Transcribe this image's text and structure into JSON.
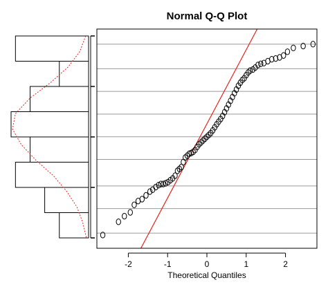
{
  "chart_data": [
    {
      "type": "scatter",
      "title": "Normal Q-Q Plot",
      "xlabel": "Theoretical Quantiles",
      "ylabel": "",
      "xlim": [
        -2.8,
        2.8
      ],
      "ylim": [
        -2.9,
        2.9
      ],
      "xticks": [
        "-2",
        "-1",
        "0",
        "1",
        "2"
      ],
      "xtick_values": [
        -2,
        -1,
        0,
        1,
        2
      ],
      "grid": "horizontal",
      "gridlines_y": [
        -2.5,
        -1.85,
        -1.25,
        -0.55,
        0.05,
        0.65,
        1.25,
        1.85,
        2.5
      ],
      "reference_line": {
        "color": "#e8231c",
        "points": [
          [
            -1.68,
            -2.9
          ],
          [
            1.28,
            2.9
          ]
        ]
      },
      "series": [
        {
          "points": [
            [
              -2.65,
              -2.55
            ],
            [
              -2.25,
              -2.2
            ],
            [
              -2.1,
              -2.05
            ],
            [
              -1.95,
              -1.95
            ],
            [
              -1.85,
              -1.75
            ],
            [
              -1.75,
              -1.65
            ],
            [
              -1.65,
              -1.6
            ],
            [
              -1.55,
              -1.5
            ],
            [
              -1.45,
              -1.4
            ],
            [
              -1.38,
              -1.35
            ],
            [
              -1.3,
              -1.28
            ],
            [
              -1.23,
              -1.23
            ],
            [
              -1.17,
              -1.2
            ],
            [
              -1.11,
              -1.2
            ],
            [
              -1.05,
              -1.18
            ],
            [
              -0.99,
              -1.15
            ],
            [
              -0.93,
              -1.1
            ],
            [
              -0.87,
              -1.05
            ],
            [
              -0.81,
              -0.98
            ],
            [
              -0.75,
              -0.85
            ],
            [
              -0.7,
              -0.8
            ],
            [
              -0.65,
              -0.75
            ],
            [
              -0.6,
              -0.62
            ],
            [
              -0.55,
              -0.5
            ],
            [
              -0.5,
              -0.45
            ],
            [
              -0.45,
              -0.4
            ],
            [
              -0.4,
              -0.38
            ],
            [
              -0.35,
              -0.35
            ],
            [
              -0.3,
              -0.3
            ],
            [
              -0.25,
              -0.22
            ],
            [
              -0.2,
              -0.15
            ],
            [
              -0.15,
              -0.1
            ],
            [
              -0.1,
              -0.05
            ],
            [
              -0.05,
              0.0
            ],
            [
              0.0,
              0.05
            ],
            [
              0.05,
              0.1
            ],
            [
              0.1,
              0.15
            ],
            [
              0.15,
              0.22
            ],
            [
              0.2,
              0.3
            ],
            [
              0.25,
              0.38
            ],
            [
              0.3,
              0.45
            ],
            [
              0.35,
              0.52
            ],
            [
              0.4,
              0.6
            ],
            [
              0.45,
              0.7
            ],
            [
              0.5,
              0.8
            ],
            [
              0.55,
              0.9
            ],
            [
              0.6,
              1.0
            ],
            [
              0.65,
              1.1
            ],
            [
              0.7,
              1.2
            ],
            [
              0.75,
              1.3
            ],
            [
              0.8,
              1.4
            ],
            [
              0.85,
              1.48
            ],
            [
              0.9,
              1.55
            ],
            [
              0.95,
              1.6
            ],
            [
              1.0,
              1.68
            ],
            [
              1.05,
              1.75
            ],
            [
              1.1,
              1.8
            ],
            [
              1.17,
              1.83
            ],
            [
              1.23,
              1.88
            ],
            [
              1.3,
              1.95
            ],
            [
              1.37,
              1.98
            ],
            [
              1.45,
              2.0
            ],
            [
              1.55,
              2.05
            ],
            [
              1.65,
              2.1
            ],
            [
              1.75,
              2.12
            ],
            [
              1.85,
              2.15
            ],
            [
              1.95,
              2.2
            ],
            [
              2.05,
              2.3
            ],
            [
              2.2,
              2.4
            ],
            [
              2.45,
              2.45
            ],
            [
              2.7,
              2.5
            ]
          ]
        }
      ]
    },
    {
      "type": "bar",
      "orientation": "horizontal",
      "bins": [
        {
          "value": 5
        },
        {
          "value": 2
        },
        {
          "value": 4
        },
        {
          "value": 5.3
        },
        {
          "value": 4
        },
        {
          "value": 5
        },
        {
          "value": 3
        },
        {
          "value": 2
        }
      ],
      "density_curve": {
        "color": "#e8231c",
        "style": "dotted",
        "values": [
          0.2,
          0.6,
          1.4,
          2.6,
          4.0,
          5.0,
          5.2,
          4.6,
          3.6,
          2.4,
          1.5,
          0.8,
          0.4,
          0.15
        ]
      }
    }
  ]
}
